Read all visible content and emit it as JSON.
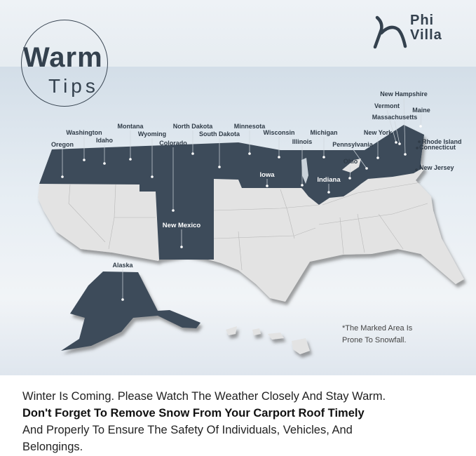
{
  "brand": {
    "logo_text_line1": "Phi",
    "logo_text_line2": "Villa"
  },
  "title": {
    "line1": "Warm",
    "line2": "Tips"
  },
  "map": {
    "highlight_color": "#3d4b5a",
    "base_color": "#e3e3e3",
    "state_labels": [
      "Oregon",
      "Washington",
      "Idaho",
      "Montana",
      "Wyoming",
      "Colorado",
      "North Dakota",
      "South Dakota",
      "Minnesota",
      "Wisconsin",
      "Illinois",
      "Michigan",
      "Pennsylvania",
      "New York",
      "Ohio",
      "Vermont",
      "New Hampshire",
      "Massachusetts",
      "Maine",
      "Rhode Island",
      "Connecticut",
      "New Jersey",
      "Iowa",
      "Indiana",
      "New Mexico",
      "Alaska"
    ]
  },
  "note": {
    "line1": "*The Marked Area Is",
    "line2": "Prone To Snowfall."
  },
  "caption": {
    "line1": "Winter Is Coming. Please Watch The Weather Closely And Stay Warm.",
    "bold": "Don't Forget To Remove Snow From Your Carport Roof Timely",
    "line3": "And Properly To Ensure The Safety Of Individuals, Vehicles, And",
    "line4": "Belongings."
  }
}
